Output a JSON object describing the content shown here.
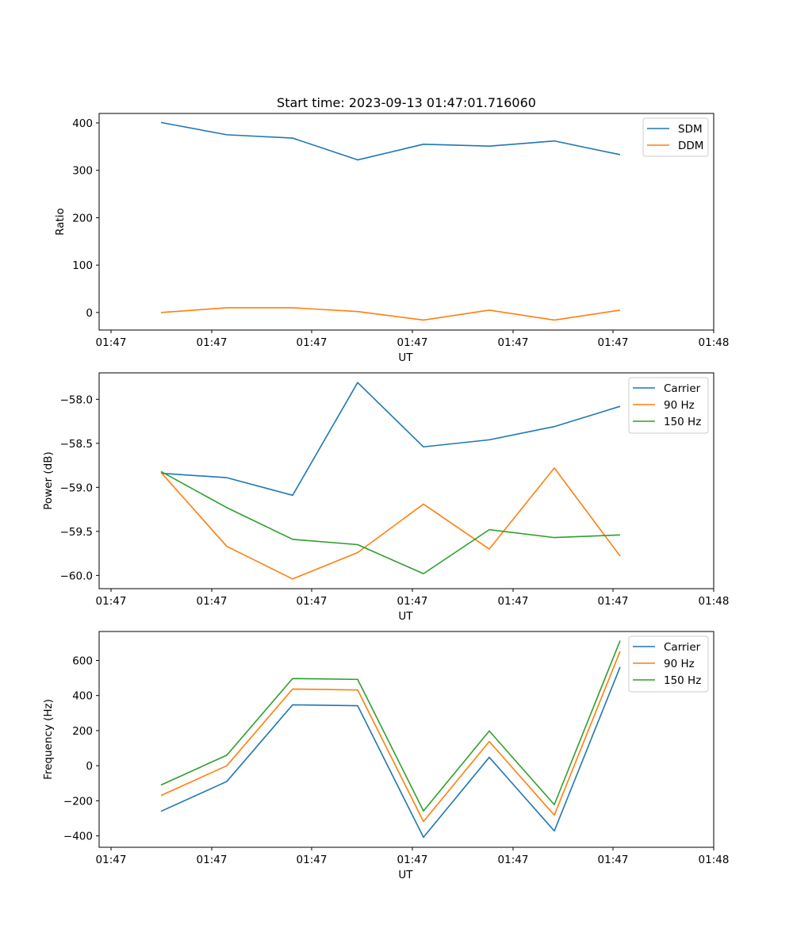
{
  "chart_data": [
    {
      "type": "line",
      "title": "Start time: 2023-09-13 01:47:01.716060",
      "xlabel": "UT",
      "ylabel": "Ratio",
      "x_tick_labels": [
        "01:47",
        "01:47",
        "01:47",
        "01:47",
        "01:47",
        "01:47",
        "01:48"
      ],
      "y_ticks": [
        0,
        100,
        200,
        300,
        400
      ],
      "y_tick_labels": [
        "0",
        "100",
        "200",
        "300",
        "400"
      ],
      "ylim": [
        -37,
        420
      ],
      "legend_position": "upper right",
      "series": [
        {
          "name": "SDM",
          "color": "#1f77b4",
          "values": [
            401,
            375,
            368,
            322,
            355,
            351,
            362,
            333
          ]
        },
        {
          "name": "DDM",
          "color": "#ff7f0e",
          "values": [
            0,
            10,
            10,
            2,
            -16,
            5,
            -16,
            5
          ]
        }
      ]
    },
    {
      "type": "line",
      "title": "",
      "xlabel": "UT",
      "ylabel": "Power (dB)",
      "x_tick_labels": [
        "01:47",
        "01:47",
        "01:47",
        "01:47",
        "01:47",
        "01:47",
        "01:48"
      ],
      "y_ticks": [
        -60.0,
        -59.5,
        -59.0,
        -58.5,
        -58.0
      ],
      "y_tick_labels": [
        "−60.0",
        "−59.5",
        "−59.0",
        "−58.5",
        "−58.0"
      ],
      "ylim": [
        -60.15,
        -57.7
      ],
      "legend_position": "upper right",
      "series": [
        {
          "name": "Carrier",
          "color": "#1f77b4",
          "values": [
            -58.84,
            -58.89,
            -59.09,
            -57.81,
            -58.54,
            -58.46,
            -58.31,
            -58.08
          ]
        },
        {
          "name": "90 Hz",
          "color": "#ff7f0e",
          "values": [
            -58.83,
            -59.67,
            -60.04,
            -59.74,
            -59.19,
            -59.7,
            -58.78,
            -59.78
          ]
        },
        {
          "name": "150 Hz",
          "color": "#2ca02c",
          "values": [
            -58.82,
            -59.23,
            -59.59,
            -59.65,
            -59.98,
            -59.48,
            -59.57,
            -59.54
          ]
        }
      ]
    },
    {
      "type": "line",
      "title": "",
      "xlabel": "UT",
      "ylabel": "Frequency (Hz)",
      "x_tick_labels": [
        "01:47",
        "01:47",
        "01:47",
        "01:47",
        "01:47",
        "01:47",
        "01:48"
      ],
      "y_ticks": [
        -400,
        -200,
        0,
        200,
        400,
        600
      ],
      "y_tick_labels": [
        "−400",
        "−200",
        "0",
        "200",
        "400",
        "600"
      ],
      "ylim": [
        -465,
        765
      ],
      "legend_position": "upper right",
      "series": [
        {
          "name": "Carrier",
          "color": "#1f77b4",
          "values": [
            -260,
            -90,
            347,
            342,
            -408,
            48,
            -372,
            563
          ]
        },
        {
          "name": "90 Hz",
          "color": "#ff7f0e",
          "values": [
            -170,
            0,
            437,
            432,
            -318,
            138,
            -282,
            653
          ]
        },
        {
          "name": "150 Hz",
          "color": "#2ca02c",
          "values": [
            -110,
            60,
            497,
            492,
            -258,
            198,
            -222,
            713
          ]
        }
      ]
    }
  ]
}
